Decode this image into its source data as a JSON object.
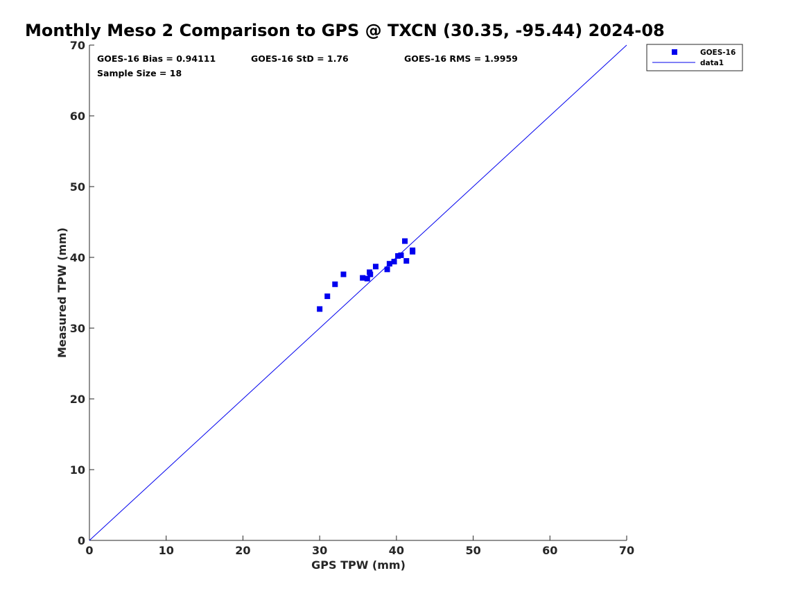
{
  "chart_data": {
    "type": "scatter",
    "title": "Monthly Meso 2 Comparison to GPS @ TXCN (30.35, -95.44) 2024-08",
    "xlabel": "GPS TPW (mm)",
    "ylabel": "Measured TPW (mm)",
    "xlim": [
      0,
      70
    ],
    "ylim": [
      0,
      70
    ],
    "xticks": [
      0,
      10,
      20,
      30,
      40,
      50,
      60,
      70
    ],
    "yticks": [
      0,
      10,
      20,
      30,
      40,
      50,
      60,
      70
    ],
    "grid": false,
    "legend_position": "outside-top-right",
    "annotations": {
      "bias": "GOES-16 Bias = 0.94111",
      "std": "GOES-16 StD = 1.76",
      "rms": "GOES-16 RMS = 1.9959",
      "sample": "Sample Size = 18"
    },
    "series": [
      {
        "name": "GOES-16",
        "type": "scatter",
        "color": "#0000ee",
        "marker": "square",
        "x": [
          30.0,
          31.0,
          32.0,
          33.1,
          35.6,
          36.2,
          36.5,
          36.6,
          37.3,
          38.8,
          39.1,
          39.7,
          40.2,
          40.6,
          41.1,
          41.3,
          42.1,
          42.1
        ],
        "y": [
          32.7,
          34.5,
          36.2,
          37.6,
          37.1,
          37.0,
          37.9,
          37.6,
          38.7,
          38.3,
          39.1,
          39.4,
          40.2,
          40.3,
          42.3,
          39.5,
          40.8,
          41.0
        ]
      },
      {
        "name": "data1",
        "type": "line",
        "color": "#0000ee",
        "x": [
          0,
          70
        ],
        "y": [
          0,
          70
        ]
      }
    ]
  }
}
